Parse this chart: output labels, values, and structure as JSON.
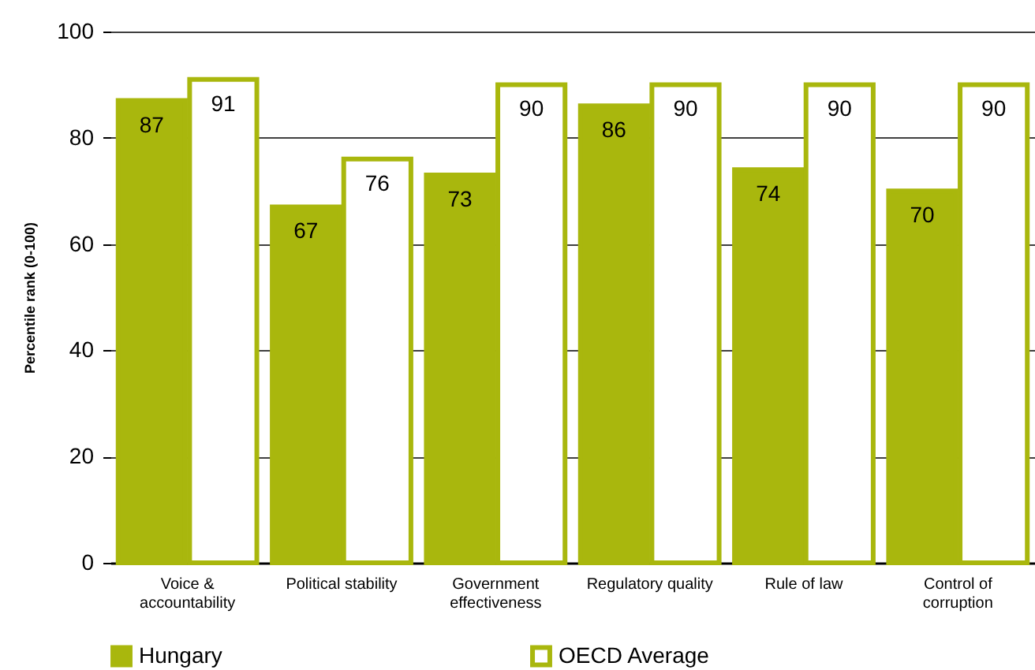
{
  "chart_data": {
    "type": "bar",
    "ylabel": "Percentile rank (0-100)",
    "categories": [
      "Voice & accountability",
      "Political stability",
      "Government effectiveness",
      "Regulatory quality",
      "Rule of law",
      "Control of corruption"
    ],
    "series": [
      {
        "name": "Hungary",
        "color": "#a9b70d",
        "values": [
          87,
          67,
          73,
          86,
          74,
          70
        ]
      },
      {
        "name": "OECD Average",
        "color": "#a9b70d",
        "values": [
          91,
          76,
          90,
          90,
          90,
          90
        ]
      }
    ],
    "ylim": [
      0,
      100
    ],
    "yticks": [
      0,
      20,
      40,
      60,
      80,
      100
    ],
    "grid": "y",
    "legend": "bottom",
    "data_labels": true
  }
}
